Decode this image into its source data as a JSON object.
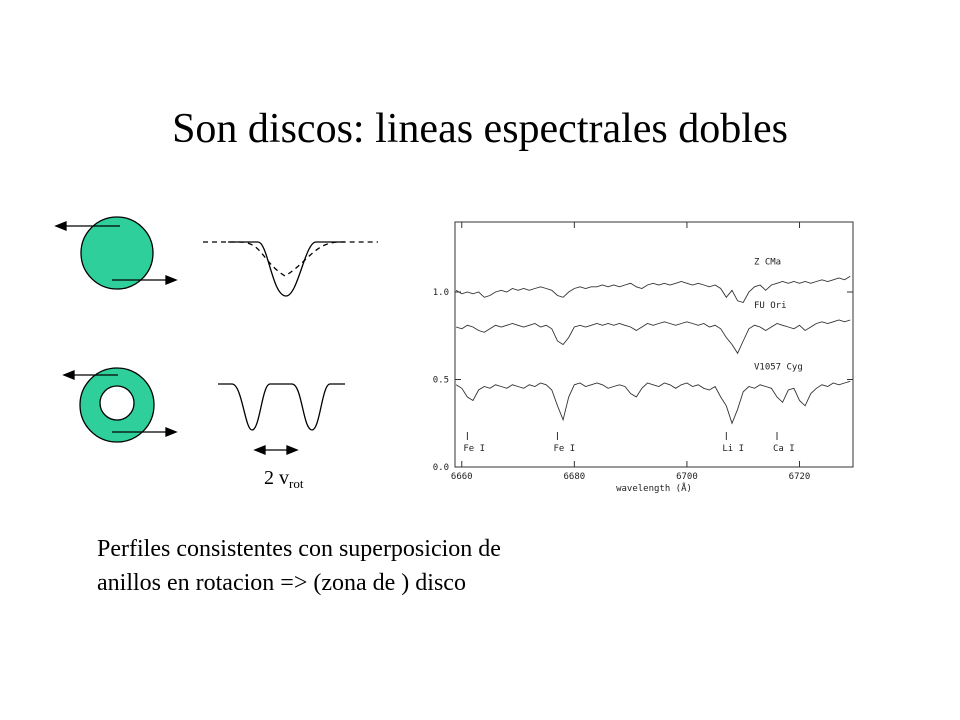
{
  "slide": {
    "title": "Son discos: lineas espectrales dobles",
    "velocity_label": {
      "text": "2 v",
      "subscript": "rot"
    },
    "caption": [
      "Perfiles consistentes con superposicion de",
      "anillos en rotacion => (zona de ) disco"
    ]
  },
  "chart_data": {
    "type": "line",
    "x_label": "wavelength (Å)",
    "xlim": [
      6658.8,
      6729.5
    ],
    "xticks": [
      6660,
      6680,
      6700,
      6720
    ],
    "ylim": [
      0,
      1.4
    ],
    "yticks": [
      {
        "value": 0,
        "label": "0.0"
      },
      {
        "value": 0.5,
        "label": "0.5"
      },
      {
        "value": 1,
        "label": "1.0"
      }
    ],
    "x": [
      6659,
      6660,
      6661,
      6662,
      6663,
      6664,
      6665,
      6666,
      6667,
      6668,
      6669,
      6670,
      6671,
      6672,
      6673,
      6674,
      6675,
      6676,
      6677,
      6678,
      6679,
      6680,
      6681,
      6682,
      6683,
      6684,
      6685,
      6686,
      6687,
      6688,
      6689,
      6690,
      6691,
      6692,
      6693,
      6694,
      6695,
      6696,
      6697,
      6698,
      6699,
      6700,
      6701,
      6702,
      6703,
      6704,
      6705,
      6706,
      6707,
      6708,
      6709,
      6710,
      6711,
      6712,
      6713,
      6714,
      6715,
      6716,
      6717,
      6718,
      6719,
      6720,
      6721,
      6722,
      6723,
      6724,
      6725,
      6726,
      6727,
      6728,
      6729
    ],
    "series": [
      {
        "name": "Z CMa",
        "color": "#333333",
        "values": [
          1.01,
          0.99,
          1.0,
          0.99,
          1.0,
          0.97,
          0.98,
          1.0,
          1.01,
          1.0,
          1.02,
          1.01,
          1.02,
          1.01,
          1.02,
          1.03,
          1.02,
          1.01,
          0.98,
          0.97,
          1.0,
          1.02,
          1.03,
          1.02,
          1.03,
          1.03,
          1.04,
          1.03,
          1.04,
          1.03,
          1.04,
          1.05,
          1.03,
          1.02,
          1.04,
          1.05,
          1.04,
          1.05,
          1.04,
          1.05,
          1.06,
          1.05,
          1.04,
          1.05,
          1.04,
          1.03,
          1.04,
          1.02,
          0.97,
          1.01,
          0.95,
          0.94,
          1.0,
          1.03,
          1.04,
          1.01,
          1.04,
          1.05,
          1.06,
          1.05,
          1.06,
          1.05,
          1.06,
          1.05,
          1.06,
          1.07,
          1.06,
          1.07,
          1.08,
          1.07,
          1.09
        ]
      },
      {
        "name": "FU Ori",
        "color": "#333333",
        "values": [
          0.8,
          0.79,
          0.81,
          0.8,
          0.78,
          0.77,
          0.79,
          0.81,
          0.8,
          0.81,
          0.82,
          0.81,
          0.8,
          0.81,
          0.82,
          0.8,
          0.81,
          0.79,
          0.72,
          0.7,
          0.74,
          0.8,
          0.81,
          0.8,
          0.81,
          0.82,
          0.81,
          0.82,
          0.81,
          0.82,
          0.81,
          0.8,
          0.78,
          0.8,
          0.82,
          0.81,
          0.82,
          0.83,
          0.82,
          0.81,
          0.82,
          0.83,
          0.82,
          0.81,
          0.82,
          0.8,
          0.81,
          0.79,
          0.74,
          0.7,
          0.65,
          0.72,
          0.79,
          0.81,
          0.8,
          0.78,
          0.8,
          0.82,
          0.81,
          0.8,
          0.79,
          0.81,
          0.78,
          0.8,
          0.82,
          0.83,
          0.82,
          0.83,
          0.84,
          0.83,
          0.84
        ]
      },
      {
        "name": "V1057 Cyg",
        "color": "#333333",
        "values": [
          0.47,
          0.45,
          0.4,
          0.38,
          0.44,
          0.46,
          0.45,
          0.47,
          0.46,
          0.45,
          0.47,
          0.46,
          0.45,
          0.47,
          0.46,
          0.48,
          0.47,
          0.44,
          0.35,
          0.27,
          0.4,
          0.47,
          0.48,
          0.46,
          0.47,
          0.48,
          0.47,
          0.45,
          0.46,
          0.47,
          0.46,
          0.42,
          0.4,
          0.45,
          0.48,
          0.47,
          0.46,
          0.48,
          0.47,
          0.45,
          0.47,
          0.48,
          0.46,
          0.47,
          0.45,
          0.44,
          0.46,
          0.4,
          0.35,
          0.25,
          0.33,
          0.43,
          0.46,
          0.45,
          0.47,
          0.46,
          0.45,
          0.4,
          0.37,
          0.44,
          0.45,
          0.38,
          0.35,
          0.42,
          0.45,
          0.47,
          0.46,
          0.48,
          0.47,
          0.48,
          0.49
        ]
      }
    ],
    "line_ids": [
      {
        "label": "Fe I",
        "x": 6661
      },
      {
        "label": "Fe I",
        "x": 6677
      },
      {
        "label": "Li I",
        "x": 6707
      },
      {
        "label": "Ca I",
        "x": 6716
      }
    ]
  }
}
